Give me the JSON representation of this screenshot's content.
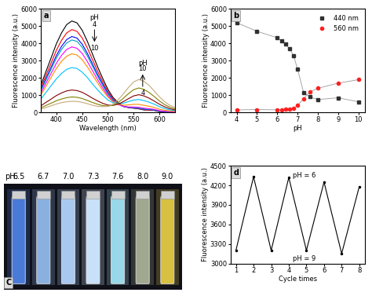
{
  "chart_data": [
    {
      "type": "line",
      "annotations": [
        "a",
        "pH",
        "4",
        "10",
        "pH",
        "10",
        "4"
      ],
      "x_label": "Wavelength (nm)",
      "y_label": "Fluorescence intensity (a.u.)",
      "x": [
        370,
        380,
        390,
        400,
        410,
        420,
        430,
        440,
        450,
        460,
        470,
        480,
        490,
        500,
        510,
        520,
        530,
        540,
        550,
        560,
        570,
        580,
        590,
        600,
        610,
        620,
        630
      ],
      "xlim": [
        370,
        630
      ],
      "xticks": [
        400,
        450,
        500,
        550,
        600
      ],
      "ylim": [
        0,
        6000
      ],
      "yticks": [
        0,
        1000,
        2000,
        3000,
        4000,
        5000,
        6000
      ],
      "series": [
        {
          "color": "#000000",
          "values": [
            1590,
            2390,
            3180,
            3980,
            4610,
            5090,
            5300,
            5190,
            4770,
            4130,
            3390,
            2650,
            1970,
            1340,
            870,
            570,
            370,
            290,
            250,
            210,
            150,
            140,
            120,
            50,
            30,
            20,
            20
          ]
        },
        {
          "color": "#ff0000",
          "values": [
            1440,
            2160,
            2880,
            3600,
            4180,
            4610,
            4800,
            4700,
            4320,
            3740,
            3070,
            2400,
            1780,
            1210,
            790,
            520,
            350,
            280,
            250,
            220,
            160,
            150,
            130,
            60,
            40,
            30,
            20
          ]
        },
        {
          "color": "#0000ff",
          "values": [
            1320,
            1980,
            2640,
            3300,
            3830,
            4220,
            4400,
            4310,
            3960,
            3430,
            2820,
            2200,
            1640,
            1120,
            730,
            490,
            350,
            290,
            270,
            240,
            190,
            170,
            140,
            70,
            50,
            30,
            20
          ]
        },
        {
          "color": "#00a0c0",
          "values": [
            1260,
            1890,
            2520,
            3150,
            3650,
            4030,
            4200,
            4120,
            3780,
            3280,
            2690,
            2100,
            1560,
            1070,
            710,
            480,
            350,
            300,
            280,
            250,
            200,
            180,
            150,
            80,
            60,
            40,
            30
          ]
        },
        {
          "color": "#ff00ff",
          "values": [
            1140,
            1710,
            2280,
            2850,
            3310,
            3650,
            3800,
            3720,
            3420,
            2960,
            2430,
            1900,
            1420,
            970,
            650,
            460,
            350,
            320,
            320,
            300,
            250,
            220,
            180,
            110,
            70,
            50,
            30
          ]
        },
        {
          "color": "#ff8c00",
          "values": [
            1020,
            1530,
            2040,
            2550,
            2960,
            3260,
            3400,
            3330,
            3060,
            2650,
            2180,
            1710,
            1280,
            890,
            620,
            480,
            420,
            440,
            470,
            470,
            410,
            360,
            290,
            190,
            130,
            90,
            60
          ]
        },
        {
          "color": "#00bfff",
          "values": [
            780,
            1170,
            1560,
            1950,
            2260,
            2500,
            2600,
            2550,
            2340,
            2030,
            1660,
            1310,
            1000,
            720,
            560,
            510,
            540,
            630,
            720,
            750,
            690,
            600,
            480,
            340,
            230,
            150,
            110
          ]
        },
        {
          "color": "#800000",
          "values": [
            390,
            590,
            780,
            980,
            1130,
            1250,
            1300,
            1270,
            1170,
            1010,
            830,
            670,
            530,
            430,
            410,
            480,
            630,
            800,
            960,
            1030,
            960,
            830,
            660,
            480,
            330,
            220,
            150
          ]
        },
        {
          "color": "#808000",
          "values": [
            270,
            410,
            540,
            680,
            780,
            860,
            900,
            880,
            810,
            700,
            580,
            480,
            400,
            370,
            420,
            580,
            820,
            1090,
            1320,
            1420,
            1340,
            1160,
            920,
            670,
            460,
            310,
            210
          ]
        },
        {
          "color": "#c8a878",
          "values": [
            200,
            290,
            390,
            490,
            570,
            620,
            650,
            640,
            590,
            510,
            420,
            360,
            340,
            350,
            480,
            730,
            1080,
            1450,
            1770,
            1910,
            1810,
            1570,
            1240,
            910,
            630,
            420,
            290
          ]
        }
      ]
    },
    {
      "type": "line",
      "annotations": [
        "b"
      ],
      "x_label": "pH",
      "y_label": "Fluorescence intensity (a.u.)",
      "x": [
        4,
        5,
        6,
        6.2,
        6.4,
        6.6,
        6.8,
        7.0,
        7.3,
        7.6,
        8,
        9,
        10
      ],
      "xlim": [
        3.7,
        10.3
      ],
      "xticks": [
        4,
        5,
        6,
        7,
        8,
        9,
        10
      ],
      "ylim": [
        0,
        6000
      ],
      "yticks": [
        0,
        1000,
        2000,
        3000,
        4000,
        5000,
        6000
      ],
      "legend": "upper right",
      "series": [
        {
          "name": "440 nm",
          "color": "#303030",
          "marker": "square",
          "values": [
            5200,
            4700,
            4330,
            4150,
            3950,
            3700,
            3300,
            2500,
            1150,
            900,
            750,
            850,
            620
          ]
        },
        {
          "name": "560 nm",
          "color": "#ff2020",
          "marker": "circle",
          "values": [
            150,
            170,
            150,
            170,
            180,
            200,
            220,
            420,
            800,
            1200,
            1400,
            1700,
            1900
          ]
        }
      ]
    },
    {
      "type": "swatch",
      "title": "pH:",
      "annotations": [
        "C"
      ],
      "categories": [
        "6.5",
        "6.7",
        "7.0",
        "7.3",
        "7.6",
        "8.0",
        "9.0"
      ],
      "colors": [
        "#4a7ad8",
        "#8ab0e0",
        "#a8c8f0",
        "#c8e0f8",
        "#98d8e8",
        "#a0a890",
        "#d8c040"
      ]
    },
    {
      "type": "line",
      "annotations": [
        "d",
        "pH = 6",
        "pH = 9"
      ],
      "x_label": "Cycle times",
      "y_label": "Fluorescence intensity (a.u.)",
      "x": [
        1,
        2,
        3,
        4,
        5,
        6,
        7,
        8
      ],
      "xlim": [
        0.7,
        8.3
      ],
      "xticks": [
        1,
        2,
        3,
        4,
        5,
        6,
        7,
        8
      ],
      "ylim": [
        3000,
        4500
      ],
      "yticks": [
        3000,
        3300,
        3600,
        3900,
        4200,
        4500
      ],
      "series": [
        {
          "color": "#000000",
          "values": [
            3200,
            4330,
            3200,
            4320,
            3200,
            4250,
            3150,
            4180
          ]
        }
      ]
    }
  ]
}
